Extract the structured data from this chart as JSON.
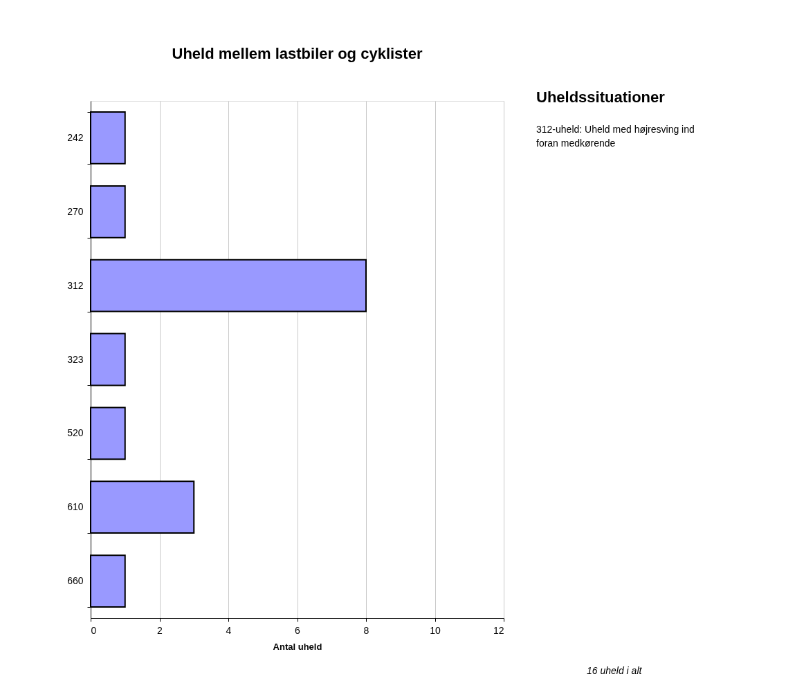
{
  "chart_data": {
    "type": "bar",
    "orientation": "horizontal",
    "title": "Uheld mellem lastbiler og cyklister",
    "categories": [
      "242",
      "270",
      "312",
      "323",
      "520",
      "610",
      "660"
    ],
    "values": [
      1,
      1,
      8,
      1,
      1,
      3,
      1
    ],
    "color": "#9999ff",
    "xlim": [
      0,
      12
    ],
    "xticks": [
      0,
      2,
      4,
      6,
      8,
      10,
      12
    ],
    "xlabel": "Antal uheld",
    "grid": "x",
    "annotations": [
      "Uheldssituationer",
      "312-uheld: Uheld med højresving ind foran medkørende",
      "16 uheld i alt"
    ]
  }
}
